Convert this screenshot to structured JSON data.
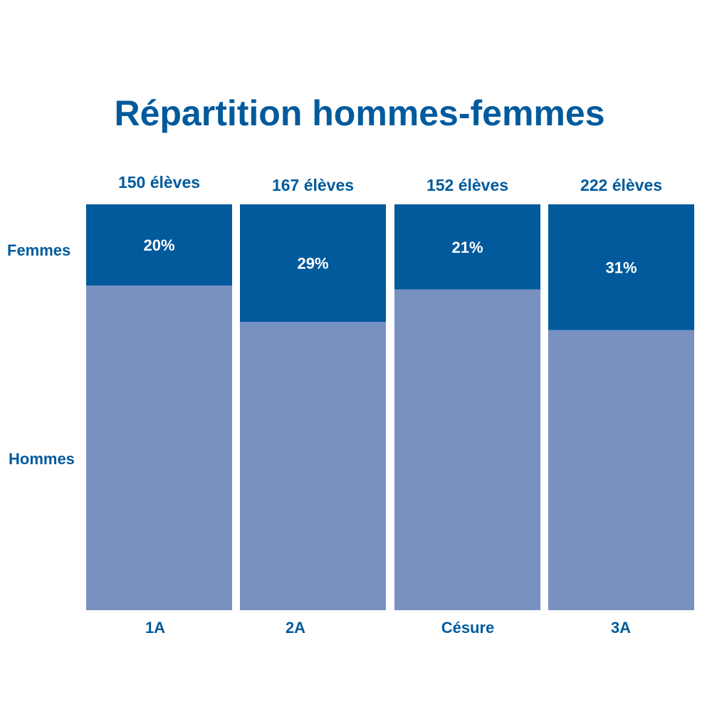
{
  "chart_data": {
    "type": "bar",
    "stacked": true,
    "normalized": true,
    "title": "Répartition hommes-femmes",
    "categories": [
      "1A",
      "2A",
      "Césure",
      "3A"
    ],
    "totals": [
      150,
      167,
      152,
      222
    ],
    "total_labels": [
      "150 élèves",
      "167 élèves",
      "152 élèves",
      "222 élèves"
    ],
    "series": [
      {
        "name": "Femmes",
        "values": [
          0.2,
          0.29,
          0.21,
          0.31
        ],
        "color": "#005a9c"
      },
      {
        "name": "Hommes",
        "values": [
          0.8,
          0.71,
          0.79,
          0.69
        ],
        "color": "#7891c1"
      }
    ],
    "value_labels": [
      "20%",
      "29%",
      "21%",
      "31%"
    ],
    "text_color": "#005a9c",
    "label_color": "#ffffff",
    "ylim": [
      0,
      1
    ],
    "grid": false,
    "legend": "left"
  }
}
